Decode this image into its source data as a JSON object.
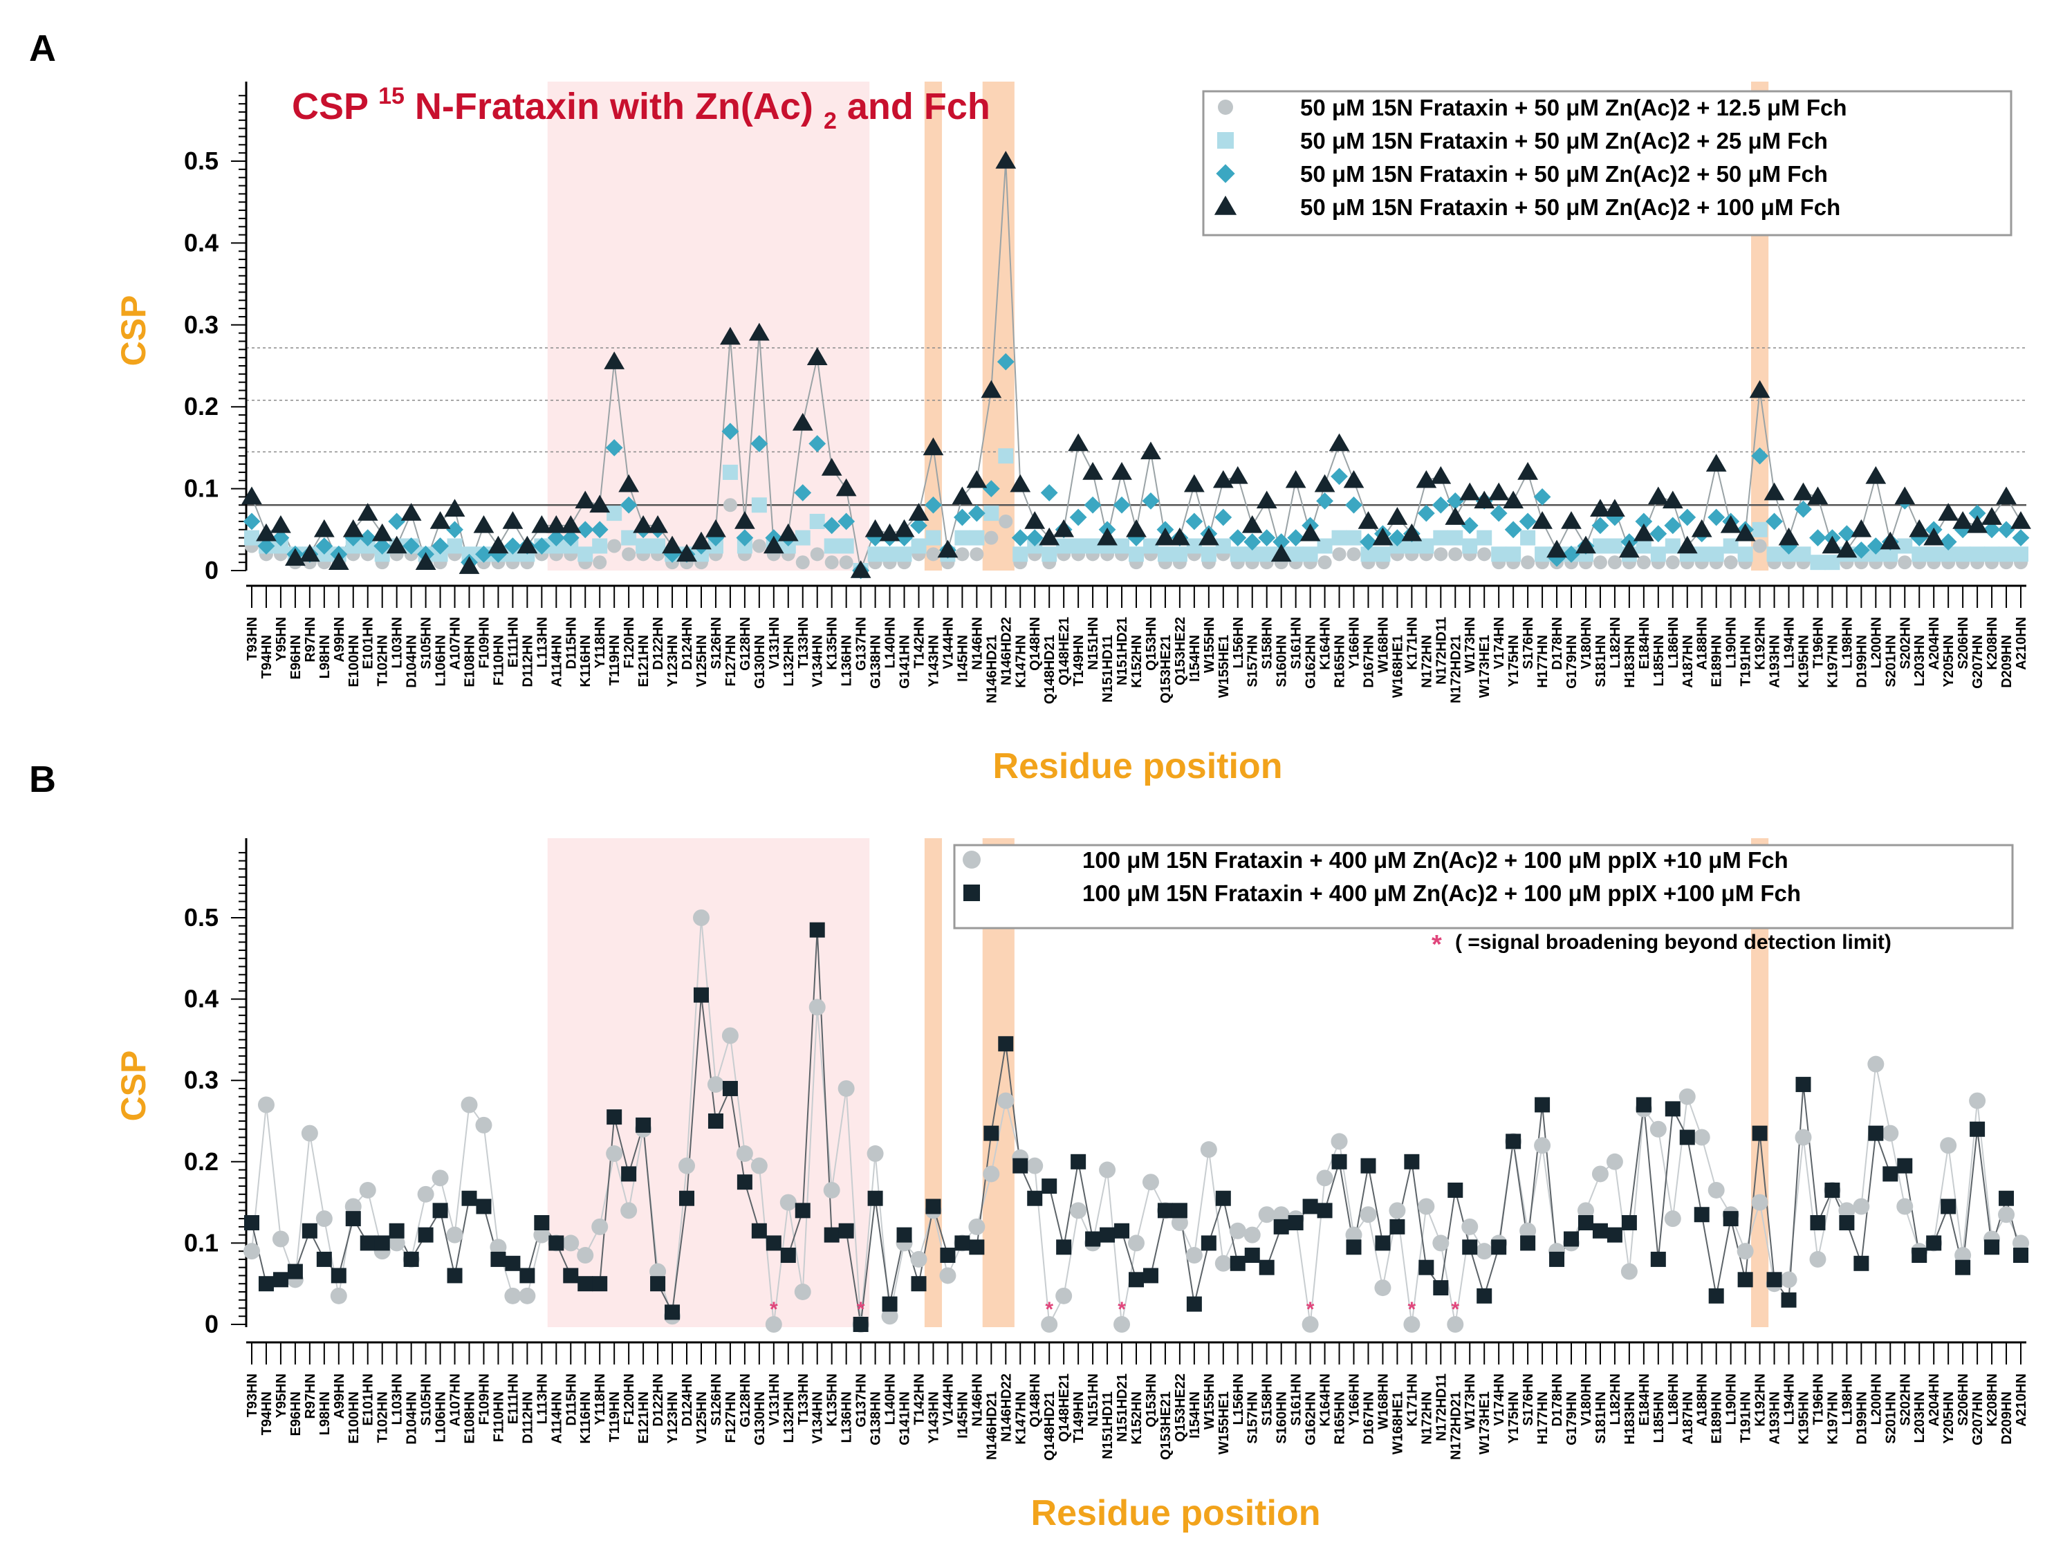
{
  "residues": [
    "T93HN",
    "T94HN",
    "Y95HN",
    "E96HN",
    "R97HN",
    "L98HN",
    "A99HN",
    "E100HN",
    "E101HN",
    "T102HN",
    "L103HN",
    "D104HN",
    "S105HN",
    "L106HN",
    "A107HN",
    "E108HN",
    "F109HN",
    "F110HN",
    "E111HN",
    "D112HN",
    "L113HN",
    "A114HN",
    "D115HN",
    "K116HN",
    "Y118HN",
    "T119HN",
    "F120HN",
    "E121HN",
    "D122HN",
    "Y123HN",
    "D124HN",
    "V125HN",
    "S126HN",
    "F127HN",
    "G128HN",
    "G130HN",
    "V131HN",
    "L132HN",
    "T133HN",
    "V134HN",
    "K135HN",
    "L136HN",
    "G137HN",
    "G138HN",
    "L140HN",
    "G141HN",
    "T142HN",
    "Y143HN",
    "V144HN",
    "I145HN",
    "N146HN",
    "N146HD21",
    "N146HD22",
    "K147HN",
    "Q148HN",
    "Q148HD21",
    "Q148HE21",
    "T149HN",
    "N151HN",
    "N151HD11",
    "N151HD21",
    "K152HN",
    "Q153HN",
    "Q153HE21",
    "Q153HE22",
    "I154HN",
    "W155HN",
    "W155HE1",
    "L156HN",
    "S157HN",
    "S158HN",
    "S160HN",
    "S161HN",
    "G162HN",
    "K164HN",
    "R165HN",
    "Y166HN",
    "D167HN",
    "W168HN",
    "W168HE1",
    "K171HN",
    "N172HN",
    "N172HD11",
    "N172HD21",
    "W173HN",
    "W173HE1",
    "V174HN",
    "Y175HN",
    "S176HN",
    "H177HN",
    "D178HN",
    "G179HN",
    "V180HN",
    "S181HN",
    "L182HN",
    "H183HN",
    "E184HN",
    "L185HN",
    "L186HN",
    "A187HN",
    "A188HN",
    "E189HN",
    "L190HN",
    "T191HN",
    "K192HN",
    "A193HN",
    "L194HN",
    "K195HN",
    "T196HN",
    "K197HN",
    "L198HN",
    "D199HN",
    "L200HN",
    "S201HN",
    "S202HN",
    "L203HN",
    "A204HN",
    "Y205HN",
    "S206HN",
    "G207HN",
    "K208HN",
    "D209HN",
    "A210HN"
  ],
  "chart_data": [
    {
      "panel_label": "A",
      "type": "line",
      "title": "CSP 15N-Frataxin with Zn(Ac)2 and Fch",
      "title_parts": {
        "csp": "CSP",
        "iso": "15",
        "main": "N-Frataxin with Zn(Ac)",
        "sub": "2",
        "tail": " and Fch"
      },
      "xlabel": "Residue position",
      "ylabel": "CSP",
      "ylim": [
        0,
        0.6
      ],
      "yticks": [
        "0",
        "0.1",
        "0.2",
        "0.3",
        "0.4",
        "0.5"
      ],
      "reference_lines": [
        0.08,
        0.145,
        0.208,
        0.272
      ],
      "highlight_regions": [
        {
          "from": "A114HN",
          "to": "G137HN",
          "color": "#fde9ea"
        },
        {
          "from": "Y143HN",
          "to": "Y143HN",
          "color": "#fbd4b6"
        },
        {
          "from": "N146HD21",
          "to": "N146HD22",
          "color": "#fbd4b6"
        },
        {
          "from": "K192HN",
          "to": "K192HN",
          "color": "#fbd4b6"
        }
      ],
      "legend": [
        "50 μM 15N Frataxin + 50 μM Zn(Ac)2 + 12.5 μM Fch",
        "50 μM 15N Frataxin + 50 μM Zn(Ac)2 + 25 μM Fch",
        "50 μM 15N Frataxin + 50 μM Zn(Ac)2 + 50 μM Fch",
        "50 μM 15N Frataxin + 50 μM Zn(Ac)2 + 100 μM Fch"
      ],
      "series": [
        {
          "name": "50 μM 15N Frataxin + 50 μM Zn(Ac)2 + 12.5 μM Fch",
          "marker": "circle",
          "color": "#bfc5c8",
          "values": [
            0.03,
            0.02,
            0.02,
            0.01,
            0.01,
            0.01,
            0.01,
            0.02,
            0.02,
            0.01,
            0.02,
            0.02,
            0.01,
            0.01,
            0.02,
            0.01,
            0.01,
            0.01,
            0.01,
            0.01,
            0.02,
            0.02,
            0.02,
            0.01,
            0.01,
            0.03,
            0.02,
            0.02,
            0.02,
            0.01,
            0.01,
            0.01,
            0.02,
            0.08,
            0.02,
            0.03,
            0.02,
            0.02,
            0.01,
            0.02,
            0.01,
            0.01,
            0,
            0.01,
            0.01,
            0.01,
            0.02,
            0.02,
            0.01,
            0.02,
            0.02,
            0.04,
            0.06,
            0.01,
            0.02,
            0.01,
            0.02,
            0.02,
            0.02,
            0.02,
            0.02,
            0.01,
            0.02,
            0.01,
            0.01,
            0.02,
            0.01,
            0.02,
            0.01,
            0.01,
            0.01,
            0.01,
            0.01,
            0.01,
            0.01,
            0.02,
            0.02,
            0.01,
            0.01,
            0.02,
            0.02,
            0.02,
            0.02,
            0.02,
            0.02,
            0.02,
            0.01,
            0.01,
            0.01,
            0.01,
            0.01,
            0.01,
            0.01,
            0.01,
            0.01,
            0.01,
            0.01,
            0.01,
            0.01,
            0.01,
            0.01,
            0.01,
            0.01,
            0.01,
            0.03,
            0.01,
            0.01,
            0.01,
            0.01,
            0.01,
            0.01,
            0.01,
            0.01,
            0.01,
            0.01,
            0.01,
            0.01,
            0.01,
            0.01,
            0.01,
            0.01,
            0.01,
            0.01
          ]
        },
        {
          "name": "50 μM 15N Frataxin + 50 μM Zn(Ac)2 + 25 μM Fch",
          "marker": "square",
          "color": "#aedce8",
          "values": [
            0.04,
            0.03,
            0.03,
            0.02,
            0.02,
            0.02,
            0.02,
            0.03,
            0.03,
            0.02,
            0.03,
            0.03,
            0.02,
            0.02,
            0.03,
            0.02,
            0.02,
            0.02,
            0.02,
            0.02,
            0.03,
            0.03,
            0.03,
            0.02,
            0.03,
            0.07,
            0.04,
            0.03,
            0.03,
            0.02,
            0.02,
            0.02,
            0.03,
            0.12,
            0.03,
            0.08,
            0.03,
            0.03,
            0.04,
            0.06,
            0.03,
            0.03,
            0,
            0.02,
            0.02,
            0.02,
            0.03,
            0.04,
            0.02,
            0.04,
            0.04,
            0.07,
            0.14,
            0.02,
            0.03,
            0.02,
            0.03,
            0.03,
            0.03,
            0.03,
            0.03,
            0.02,
            0.03,
            0.02,
            0.02,
            0.03,
            0.02,
            0.03,
            0.02,
            0.02,
            0.02,
            0.02,
            0.02,
            0.02,
            0.03,
            0.04,
            0.04,
            0.02,
            0.02,
            0.03,
            0.03,
            0.03,
            0.04,
            0.04,
            0.03,
            0.04,
            0.02,
            0.02,
            0.04,
            0.02,
            0.02,
            0.02,
            0.02,
            0.03,
            0.03,
            0.02,
            0.03,
            0.02,
            0.03,
            0.02,
            0.02,
            0.02,
            0.03,
            0.02,
            0.05,
            0.02,
            0.02,
            0.02,
            0.01,
            0.01,
            0.02,
            0.02,
            0.02,
            0.02,
            0.03,
            0.02,
            0.02,
            0.02,
            0.02,
            0.02,
            0.02,
            0.02,
            0.02
          ]
        },
        {
          "name": "50 μM 15N Frataxin + 50 μM Zn(Ac)2 + 50 μM Fch",
          "marker": "diamond",
          "color": "#3ba7c2",
          "values": [
            0.06,
            0.03,
            0.04,
            0.02,
            0.02,
            0.03,
            0.02,
            0.04,
            0.04,
            0.03,
            0.06,
            0.03,
            0.02,
            0.03,
            0.05,
            0.01,
            0.02,
            0.02,
            0.03,
            0.03,
            0.03,
            0.04,
            0.04,
            0.05,
            0.05,
            0.15,
            0.08,
            0.05,
            0.05,
            0.02,
            0.02,
            0.03,
            0.04,
            0.17,
            0.04,
            0.155,
            0.04,
            0.04,
            0.095,
            0.155,
            0.055,
            0.06,
            0,
            0.04,
            0.04,
            0.04,
            0.055,
            0.08,
            0.025,
            0.065,
            0.07,
            0.1,
            0.255,
            0.04,
            0.04,
            0.095,
            0.05,
            0.065,
            0.08,
            0.05,
            0.08,
            0.04,
            0.085,
            0.05,
            0.04,
            0.06,
            0.045,
            0.065,
            0.04,
            0.035,
            0.04,
            0.035,
            0.04,
            0.055,
            0.085,
            0.115,
            0.08,
            0.035,
            0.045,
            0.04,
            0.045,
            0.07,
            0.08,
            0.085,
            0.055,
            0.085,
            0.07,
            0.05,
            0.06,
            0.09,
            0.015,
            0.02,
            0.03,
            0.055,
            0.065,
            0.035,
            0.06,
            0.045,
            0.055,
            0.065,
            0.045,
            0.065,
            0.06,
            0.05,
            0.14,
            0.06,
            0.03,
            0.075,
            0.04,
            0.04,
            0.045,
            0.025,
            0.03,
            0.035,
            0.085,
            0.04,
            0.05,
            0.035,
            0.05,
            0.07,
            0.05,
            0.05,
            0.04
          ]
        },
        {
          "name": "50 μM 15N Frataxin + 50 μM Zn(Ac)2 + 100 μM Fch",
          "marker": "triangle",
          "color": "#15252e",
          "values": [
            0.09,
            0.045,
            0.055,
            0.015,
            0.02,
            0.05,
            0.01,
            0.05,
            0.07,
            0.045,
            0.03,
            0.07,
            0.01,
            0.06,
            0.075,
            0.005,
            0.055,
            0.03,
            0.06,
            0.03,
            0.055,
            0.055,
            0.055,
            0.085,
            0.08,
            0.255,
            0.105,
            0.055,
            0.055,
            0.03,
            0.02,
            0.035,
            0.05,
            0.285,
            0.06,
            0.29,
            0.03,
            0.045,
            0.18,
            0.26,
            0.125,
            0.1,
            0,
            0.05,
            0.045,
            0.05,
            0.07,
            0.15,
            0.025,
            0.09,
            0.11,
            0.22,
            0.5,
            0.105,
            0.06,
            0.04,
            0.05,
            0.155,
            0.12,
            0.04,
            0.12,
            0.05,
            0.145,
            0.04,
            0.04,
            0.105,
            0.04,
            0.11,
            0.115,
            0.055,
            0.085,
            0.02,
            0.11,
            0.045,
            0.105,
            0.155,
            0.11,
            0.06,
            0.04,
            0.065,
            0.045,
            0.11,
            0.115,
            0.065,
            0.095,
            0.085,
            0.095,
            0.085,
            0.12,
            0.06,
            0.025,
            0.06,
            0.03,
            0.075,
            0.075,
            0.025,
            0.045,
            0.09,
            0.085,
            0.03,
            0.05,
            0.13,
            0.055,
            0.045,
            0.22,
            0.095,
            0.04,
            0.095,
            0.09,
            0.03,
            0.025,
            0.05,
            0.115,
            0.035,
            0.09,
            0.05,
            0.04,
            0.07,
            0.06,
            0.055,
            0.065,
            0.09,
            0.06
          ]
        }
      ]
    },
    {
      "panel_label": "B",
      "type": "line",
      "title": "",
      "xlabel": "Residue position",
      "ylabel": "CSP",
      "ylim": [
        0,
        0.6
      ],
      "yticks": [
        "0",
        "0.1",
        "0.2",
        "0.3",
        "0.4",
        "0.5"
      ],
      "highlight_regions": [
        {
          "from": "A114HN",
          "to": "G137HN",
          "color": "#fde9ea"
        },
        {
          "from": "Y143HN",
          "to": "Y143HN",
          "color": "#fbd4b6"
        },
        {
          "from": "N146HD21",
          "to": "N146HD22",
          "color": "#fbd4b6"
        },
        {
          "from": "K192HN",
          "to": "K192HN",
          "color": "#fbd4b6"
        }
      ],
      "legend": [
        "100 μM 15N Frataxin + 400 μM Zn(Ac)2 + 100 μM ppIX +10 μM Fch",
        "100 μM 15N Frataxin + 400 μM Zn(Ac)2 + 100 μM ppIX +100 μM Fch"
      ],
      "note_marker": "*",
      "note": "( =signal broadening beyond detection limit)",
      "broadened_residues": [
        "V131HN",
        "G137HN",
        "Q148HD21",
        "N151HD21",
        "G162HN",
        "K171HN",
        "N172HD21"
      ],
      "series": [
        {
          "name": "100 μM 15N Frataxin + 400 μM Zn(Ac)2 + 100 μM ppIX +10 μM Fch",
          "marker": "circle",
          "color": "#bfc5c8",
          "values": [
            0.09,
            0.27,
            0.105,
            0.055,
            0.235,
            0.13,
            0.035,
            0.145,
            0.165,
            0.09,
            0.1,
            0.08,
            0.16,
            0.18,
            0.11,
            0.27,
            0.245,
            0.095,
            0.035,
            0.035,
            0.11,
            0.1,
            0.1,
            0.085,
            0.12,
            0.21,
            0.14,
            0.24,
            0.065,
            0.01,
            0.195,
            0.5,
            0.295,
            0.355,
            0.21,
            0.195,
            0,
            0.15,
            0.04,
            0.39,
            0.165,
            0.29,
            0,
            0.21,
            0.01,
            0.1,
            0.08,
            0.14,
            0.06,
            0.1,
            0.12,
            0.185,
            0.275,
            0.205,
            0.195,
            0,
            0.035,
            0.14,
            0.1,
            0.19,
            0,
            0.1,
            0.175,
            0.14,
            0.125,
            0.085,
            0.215,
            0.075,
            0.115,
            0.11,
            0.135,
            0.135,
            0.13,
            0,
            0.18,
            0.225,
            0.11,
            0.135,
            0.045,
            0.14,
            0,
            0.145,
            0.1,
            0,
            0.12,
            0.09,
            0.1,
            0.225,
            0.115,
            0.22,
            0.09,
            0.1,
            0.14,
            0.185,
            0.2,
            0.065,
            0.265,
            0.24,
            0.13,
            0.28,
            0.23,
            0.165,
            0.135,
            0.09,
            0.15,
            0.05,
            0.055,
            0.23,
            0.08,
            0.165,
            0.14,
            0.145,
            0.32,
            0.235,
            0.145,
            0.09,
            0.1,
            0.22,
            0.085,
            0.275,
            0.105,
            0.135,
            0.1
          ]
        },
        {
          "name": "100 μM 15N Frataxin + 400 μM Zn(Ac)2 + 100 μM ppIX +100 μM Fch",
          "marker": "square",
          "color": "#15252e",
          "values": [
            0.125,
            0.05,
            0.055,
            0.065,
            0.115,
            0.08,
            0.06,
            0.13,
            0.1,
            0.1,
            0.115,
            0.08,
            0.11,
            0.14,
            0.06,
            0.155,
            0.145,
            0.08,
            0.075,
            0.06,
            0.125,
            0.1,
            0.06,
            0.05,
            0.05,
            0.255,
            0.185,
            0.245,
            0.05,
            0.015,
            0.155,
            0.405,
            0.25,
            0.29,
            0.175,
            0.115,
            0.1,
            0.085,
            0.14,
            0.485,
            0.11,
            0.115,
            0,
            0.155,
            0.025,
            0.11,
            0.05,
            0.145,
            0.085,
            0.1,
            0.095,
            0.235,
            0.345,
            0.195,
            0.155,
            0.17,
            0.095,
            0.2,
            0.105,
            0.11,
            0.115,
            0.055,
            0.06,
            0.14,
            0.14,
            0.025,
            0.1,
            0.155,
            0.075,
            0.085,
            0.07,
            0.12,
            0.125,
            0.145,
            0.14,
            0.2,
            0.095,
            0.195,
            0.1,
            0.12,
            0.2,
            0.07,
            0.045,
            0.165,
            0.095,
            0.035,
            0.095,
            0.225,
            0.1,
            0.27,
            0.08,
            0.105,
            0.125,
            0.115,
            0.11,
            0.125,
            0.27,
            0.08,
            0.265,
            0.23,
            0.135,
            0.035,
            0.13,
            0.055,
            0.235,
            0.055,
            0.03,
            0.295,
            0.125,
            0.165,
            0.125,
            0.075,
            0.235,
            0.185,
            0.195,
            0.085,
            0.1,
            0.145,
            0.07,
            0.24,
            0.095,
            0.155,
            0.085
          ]
        }
      ]
    }
  ]
}
